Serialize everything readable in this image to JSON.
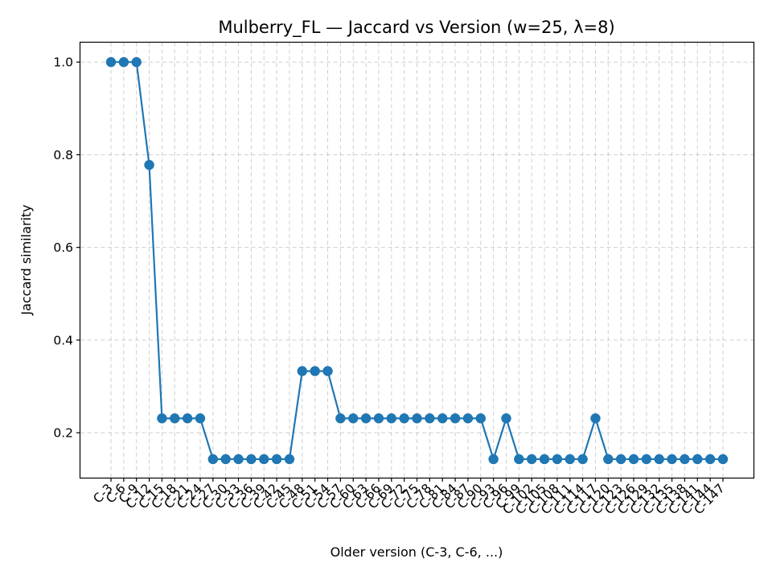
{
  "chart_data": {
    "type": "line",
    "title": "Mulberry_FL — Jaccard vs Version (w=25, λ=8)",
    "xlabel": "Older version (C-3, C-6, ...)",
    "ylabel": "Jaccard similarity",
    "ylim": [
      0.103,
      1.042
    ],
    "yticks": [
      0.2,
      0.4,
      0.6,
      0.8,
      1.0
    ],
    "ytick_labels": [
      "0.2",
      "0.4",
      "0.6",
      "0.8",
      "1.0"
    ],
    "grid": true,
    "color": "#1f77b4",
    "categories": [
      "C-3",
      "C-6",
      "C-9",
      "C-12",
      "C-15",
      "C-18",
      "C-21",
      "C-24",
      "C-27",
      "C-30",
      "C-33",
      "C-36",
      "C-39",
      "C-42",
      "C-45",
      "C-48",
      "C-51",
      "C-54",
      "C-57",
      "C-60",
      "C-63",
      "C-66",
      "C-69",
      "C-72",
      "C-75",
      "C-78",
      "C-81",
      "C-84",
      "C-87",
      "C-90",
      "C-93",
      "C-96",
      "C-99",
      "C-102",
      "C-105",
      "C-108",
      "C-111",
      "C-114",
      "C-117",
      "C-120",
      "C-123",
      "C-126",
      "C-129",
      "C-132",
      "C-135",
      "C-138",
      "C-141",
      "C-144",
      "C-147"
    ],
    "series": [
      {
        "values": [
          1.0,
          1.0,
          1.0,
          0.778,
          0.231,
          0.231,
          0.231,
          0.231,
          0.143,
          0.143,
          0.143,
          0.143,
          0.143,
          0.143,
          0.143,
          0.333,
          0.333,
          0.333,
          0.231,
          0.231,
          0.231,
          0.231,
          0.231,
          0.231,
          0.231,
          0.231,
          0.231,
          0.231,
          0.231,
          0.231,
          0.143,
          0.231,
          0.143,
          0.143,
          0.143,
          0.143,
          0.143,
          0.143,
          0.231,
          0.143,
          0.143,
          0.143,
          0.143,
          0.143,
          0.143,
          0.143,
          0.143,
          0.143,
          0.143
        ]
      }
    ]
  }
}
